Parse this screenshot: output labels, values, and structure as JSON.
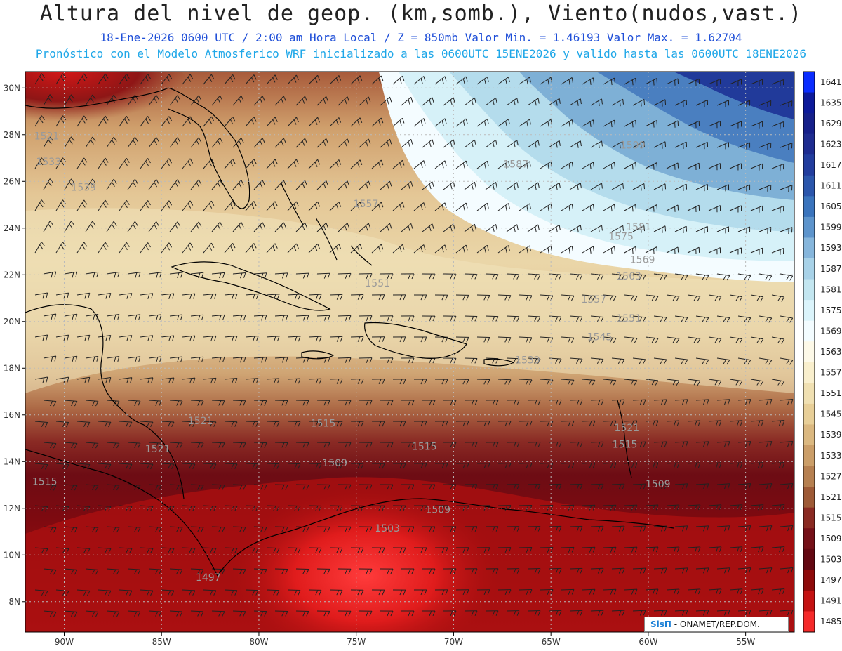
{
  "header": {
    "title": "Altura del nivel de geop. (km,somb.), Viento(nudos,vast.)",
    "line1": "18-Ene-2026  0600 UTC / 2:00 am Hora Local / Z = 850mb    Valor Min. = 1.46193  Valor Max. = 1.62704",
    "line2": "Pronóstico con el Modelo Atmosferico WRF inicializado a las 0600UTC_15ENE2026 y valido hasta las  0600UTC_18ENE2026"
  },
  "map": {
    "lon_range": [
      -92,
      -52.5
    ],
    "lat_range": [
      6.7,
      30.7
    ],
    "lon_ticks": [
      "90W",
      "85W",
      "80W",
      "75W",
      "70W",
      "65W",
      "60W",
      "55W"
    ],
    "lat_ticks": [
      "8N",
      "10N",
      "12N",
      "14N",
      "16N",
      "18N",
      "20N",
      "22N",
      "24N",
      "26N",
      "28N",
      "30N"
    ],
    "contour_labels": [
      {
        "text": "1521",
        "lon": -90.9,
        "lat": 27.8
      },
      {
        "text": "1533",
        "lon": -90.8,
        "lat": 26.7
      },
      {
        "text": "1539",
        "lon": -89.0,
        "lat": 25.6
      },
      {
        "text": "1557",
        "lon": -74.5,
        "lat": 24.9
      },
      {
        "text": "1587",
        "lon": -66.8,
        "lat": 26.6
      },
      {
        "text": "1599",
        "lon": -60.8,
        "lat": 27.4
      },
      {
        "text": "1581",
        "lon": -60.5,
        "lat": 23.9
      },
      {
        "text": "1575",
        "lon": -61.4,
        "lat": 23.5
      },
      {
        "text": "1569",
        "lon": -60.3,
        "lat": 22.5
      },
      {
        "text": "1563",
        "lon": -61.0,
        "lat": 21.8
      },
      {
        "text": "1557",
        "lon": -62.8,
        "lat": 20.8
      },
      {
        "text": "1551",
        "lon": -61.0,
        "lat": 20.0
      },
      {
        "text": "1551",
        "lon": -73.9,
        "lat": 21.5
      },
      {
        "text": "1545",
        "lon": -62.5,
        "lat": 19.2
      },
      {
        "text": "1539",
        "lon": -66.2,
        "lat": 18.2
      },
      {
        "text": "1521",
        "lon": -61.1,
        "lat": 15.3
      },
      {
        "text": "1515",
        "lon": -61.2,
        "lat": 14.6
      },
      {
        "text": "1515",
        "lon": -76.7,
        "lat": 15.5
      },
      {
        "text": "1515",
        "lon": -71.5,
        "lat": 14.5
      },
      {
        "text": "1521",
        "lon": -83.0,
        "lat": 15.6
      },
      {
        "text": "1521",
        "lon": -85.2,
        "lat": 14.4
      },
      {
        "text": "1509",
        "lon": -76.1,
        "lat": 13.8
      },
      {
        "text": "1509",
        "lon": -59.5,
        "lat": 12.9
      },
      {
        "text": "1509",
        "lon": -70.8,
        "lat": 11.8
      },
      {
        "text": "1503",
        "lon": -73.4,
        "lat": 11.0
      },
      {
        "text": "1515",
        "lon": -91.0,
        "lat": 13.0
      },
      {
        "text": "1497",
        "lon": -82.6,
        "lat": 8.9
      }
    ]
  },
  "colorbar": {
    "levels": [
      "1641",
      "1635",
      "1629",
      "1623",
      "1617",
      "1611",
      "1605",
      "1599",
      "1593",
      "1587",
      "1581",
      "1575",
      "1569",
      "1563",
      "1557",
      "1551",
      "1545",
      "1539",
      "1533",
      "1527",
      "1521",
      "1515",
      "1509",
      "1503",
      "1497",
      "1491",
      "1485"
    ],
    "colors": [
      "#0a2cff",
      "#0d1a9a",
      "#16208a",
      "#1e2c90",
      "#223d9e",
      "#2b56ac",
      "#3a74bd",
      "#5d94cc",
      "#86b6dc",
      "#a8d2e8",
      "#c3e6f0",
      "#dbf4fb",
      "#f3fcff",
      "#fdf9e8",
      "#f9efcd",
      "#f0e0b2",
      "#e8cf98",
      "#dbb880",
      "#cb9e68",
      "#b68050",
      "#9e5a36",
      "#8a2a22",
      "#751018",
      "#630812",
      "#8e0a0a",
      "#c41212",
      "#f52a2a"
    ]
  },
  "credit": {
    "brand": "SisΠ",
    "text": " - ONAMET/REP.DOM."
  }
}
